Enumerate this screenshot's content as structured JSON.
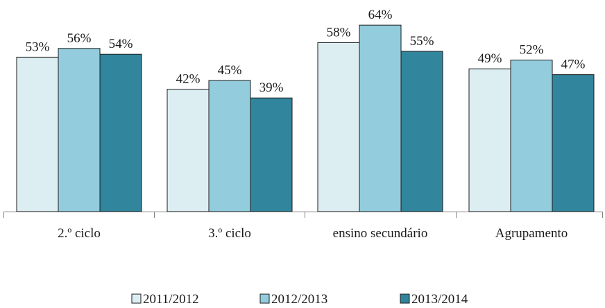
{
  "chart_data": {
    "type": "bar",
    "title": "",
    "xlabel": "",
    "ylabel": "",
    "ylim": [
      0,
      70
    ],
    "grid": false,
    "legend_position": "bottom",
    "categories": [
      "2.º ciclo",
      "3.º ciclo",
      "ensino secundário",
      "Agrupamento"
    ],
    "series": [
      {
        "name": "2011/2012",
        "color": "#ddeef3",
        "values": [
          53,
          42,
          58,
          49
        ],
        "labels": [
          "53%",
          "42%",
          "58%",
          "49%"
        ]
      },
      {
        "name": "2012/2013",
        "color": "#93cddd",
        "values": [
          56,
          45,
          64,
          52
        ],
        "labels": [
          "56%",
          "45%",
          "64%",
          "52%"
        ]
      },
      {
        "name": "2013/2014",
        "color": "#31859c",
        "values": [
          54,
          39,
          55,
          47
        ],
        "labels": [
          "54%",
          "39%",
          "55%",
          "47%"
        ]
      }
    ]
  }
}
